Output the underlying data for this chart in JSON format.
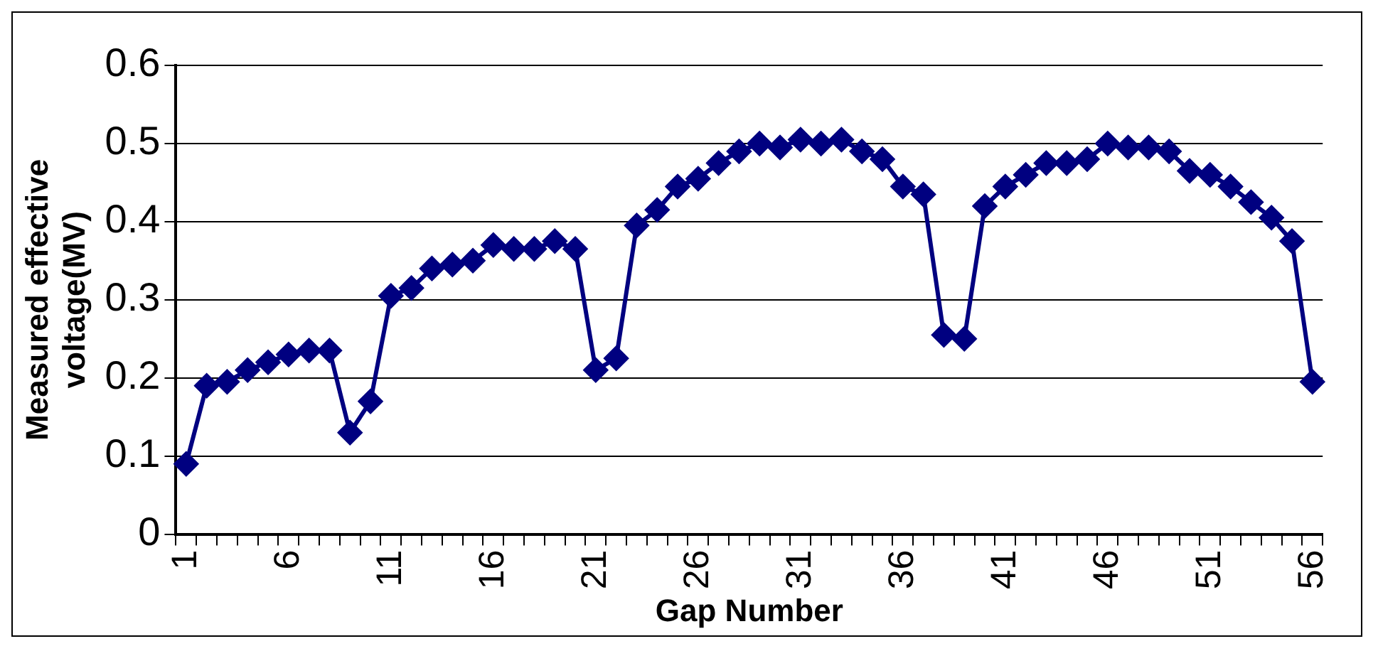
{
  "chart_data": {
    "type": "line",
    "xlabel": "Gap Number",
    "ylabel": "Measured effective voltage(MV)",
    "categories": [
      "1",
      null,
      null,
      null,
      null,
      "6",
      null,
      null,
      null,
      null,
      "11",
      null,
      null,
      null,
      null,
      "16",
      null,
      null,
      null,
      null,
      "21",
      null,
      null,
      null,
      null,
      "26",
      null,
      null,
      null,
      null,
      "31",
      null,
      null,
      null,
      null,
      "36",
      null,
      null,
      null,
      null,
      "41",
      null,
      null,
      null,
      null,
      "46",
      null,
      null,
      null,
      null,
      "51",
      null,
      null,
      null,
      null,
      "56"
    ],
    "series": [
      {
        "color": "#000080",
        "values": [
          0.09,
          0.19,
          0.195,
          0.21,
          0.22,
          0.23,
          0.235,
          0.235,
          0.13,
          0.17,
          0.305,
          0.315,
          0.34,
          0.345,
          0.35,
          0.37,
          0.365,
          0.365,
          0.375,
          0.365,
          0.21,
          0.225,
          0.395,
          0.415,
          0.445,
          0.455,
          0.475,
          0.49,
          0.5,
          0.495,
          0.505,
          0.5,
          0.505,
          0.49,
          0.48,
          0.445,
          0.435,
          0.255,
          0.25,
          0.42,
          0.445,
          0.46,
          0.475,
          0.475,
          0.48,
          0.5,
          0.495,
          0.495,
          0.49,
          0.465,
          0.46,
          0.445,
          0.425,
          0.405,
          0.375,
          0.195
        ]
      }
    ],
    "ylim": [
      0,
      0.6
    ],
    "yticks": [
      0,
      0.1,
      0.2,
      0.3,
      0.4,
      0.5,
      0.6
    ],
    "grid": "y",
    "legend": false,
    "marker": "diamond",
    "line_style": "solid"
  }
}
